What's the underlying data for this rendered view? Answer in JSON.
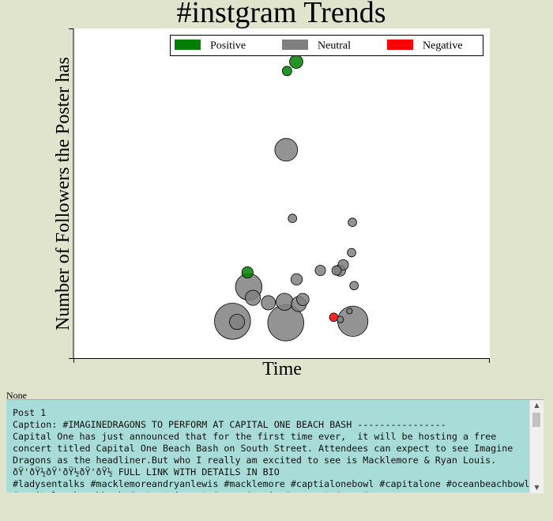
{
  "chart_data": {
    "type": "scatter",
    "title": "#instgram Trends",
    "xlabel": "Time",
    "ylabel": "Number of Followers the Poster has",
    "x_ticks": [],
    "y_ticks": [],
    "xlim": [
      0,
      100
    ],
    "ylim": [
      0,
      100
    ],
    "grid": false,
    "legend_position": "top-right",
    "legend": [
      {
        "name": "Positive",
        "color": "#008000"
      },
      {
        "name": "Neutral",
        "color": "#808080"
      },
      {
        "name": "Negative",
        "color": "#ff0000"
      }
    ],
    "series": [
      {
        "name": "Positive",
        "color": "#008000",
        "points": [
          {
            "x": 53.5,
            "y": 89.9,
            "size": 7
          },
          {
            "x": 51.3,
            "y": 87.1,
            "size": 5
          },
          {
            "x": 41.8,
            "y": 26.0,
            "size": 6
          }
        ]
      },
      {
        "name": "Neutral",
        "color": "#808080",
        "points": [
          {
            "x": 51.1,
            "y": 63.2,
            "size": 12
          },
          {
            "x": 52.6,
            "y": 42.4,
            "size": 4.5
          },
          {
            "x": 67.0,
            "y": 41.2,
            "size": 4.5
          },
          {
            "x": 66.8,
            "y": 32.0,
            "size": 4.5
          },
          {
            "x": 64.8,
            "y": 28.3,
            "size": 5.5
          },
          {
            "x": 59.3,
            "y": 26.6,
            "size": 5.5
          },
          {
            "x": 53.6,
            "y": 23.9,
            "size": 6
          },
          {
            "x": 63.2,
            "y": 26.6,
            "size": 5
          },
          {
            "x": 64.0,
            "y": 26.6,
            "size": 6
          },
          {
            "x": 67.4,
            "y": 22.0,
            "size": 4.5
          },
          {
            "x": 42.1,
            "y": 21.6,
            "size": 14
          },
          {
            "x": 43.1,
            "y": 18.3,
            "size": 8
          },
          {
            "x": 55.1,
            "y": 17.8,
            "size": 6.5
          },
          {
            "x": 50.7,
            "y": 17.1,
            "size": 9
          },
          {
            "x": 54.1,
            "y": 16.4,
            "size": 8
          },
          {
            "x": 46.8,
            "y": 16.8,
            "size": 7.5
          },
          {
            "x": 38.2,
            "y": 11.2,
            "size": 19
          },
          {
            "x": 39.3,
            "y": 11.0,
            "size": 8
          },
          {
            "x": 51.0,
            "y": 10.7,
            "size": 19
          },
          {
            "x": 67.1,
            "y": 11.2,
            "size": 16
          },
          {
            "x": 64.1,
            "y": 11.7,
            "size": 3.5
          },
          {
            "x": 66.3,
            "y": 14.3,
            "size": 3
          }
        ]
      },
      {
        "name": "Negative",
        "color": "#ff0000",
        "points": [
          {
            "x": 62.5,
            "y": 12.4,
            "size": 4.5
          }
        ]
      }
    ]
  },
  "status_label": "None",
  "post": {
    "text": "Post 1\nCaption: #IMAGINEDRAGONS TO PERFORM AT CAPITAL ONE BEACH BASH ----------------\nCapital One has just announced that for the first time ever,  it will be hosting a free concert titled Capital One Beach Bash on South Street. Attendees can expect to see Imagine Dragons as the headliner.But who I really am excited to see is Macklemore & Ryan Louis. ðŸ'ðŸ½ðŸ'ðŸ½ðŸ'ðŸ½ FULL LINK WITH DETAILS IN BIO\n#ladysentalks #macklemoreandryanlewis #macklemore #captialonebowl #capitalone #oceanbeachbowl #capitalonebeachbash #entertainment #news #music #concert #rap #pop"
  }
}
